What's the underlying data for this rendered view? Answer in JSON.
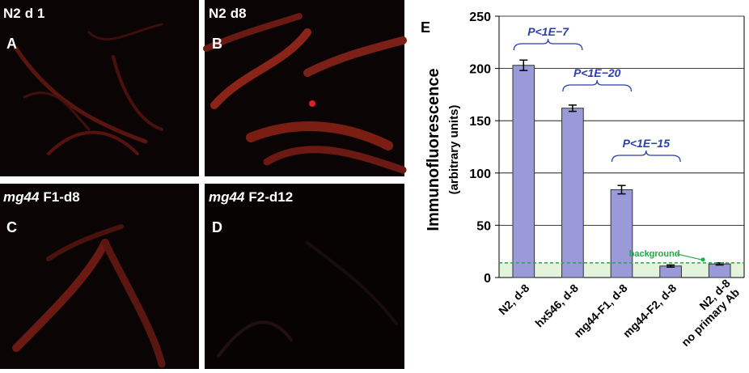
{
  "panels": [
    {
      "strain": "N2",
      "stage": "d 1",
      "strain_italic": false,
      "letter": "A"
    },
    {
      "strain": "N2",
      "stage": "d8",
      "strain_italic": false,
      "letter": "B"
    },
    {
      "strain": "mg44",
      "stage": "F1-d8",
      "strain_italic": true,
      "letter": "C"
    },
    {
      "strain": "mg44",
      "stage": "F2-d12",
      "strain_italic": true,
      "letter": "D"
    }
  ],
  "chart_data": {
    "type": "bar",
    "panel_letter": "E",
    "y_label": "Immunofluorescence",
    "y_sublabel": "(arbitrary units)",
    "categories": [
      [
        "N2, d-8"
      ],
      [
        "hx546, d-8"
      ],
      [
        "mg44-F1, d-8"
      ],
      [
        "mg44-F2, d-8"
      ],
      [
        "N2, d-8",
        "no primary Ab"
      ]
    ],
    "values": [
      203,
      162,
      84,
      11,
      13
    ],
    "errors": [
      5,
      3,
      4,
      1,
      1
    ],
    "color": "#9a9ad8",
    "ylim": [
      0,
      250
    ],
    "yticks": [
      0,
      50,
      100,
      150,
      200,
      250
    ],
    "grid": true,
    "background": {
      "label": "background",
      "value": 14,
      "color": "#22aa44"
    },
    "annotations": [
      {
        "text": "P<1E−7",
        "between": [
          0,
          1
        ]
      },
      {
        "text": "P<1E−20",
        "between": [
          1,
          2
        ]
      },
      {
        "text": "P<1E−15",
        "between": [
          2,
          3
        ]
      }
    ]
  }
}
